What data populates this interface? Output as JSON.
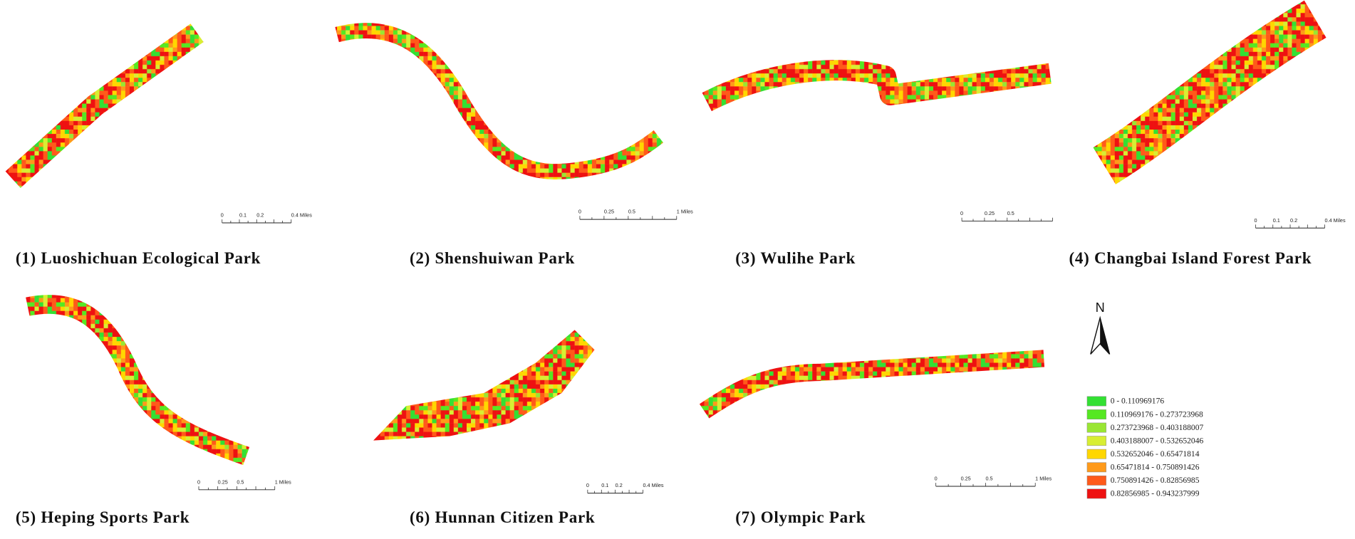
{
  "panels": [
    {
      "caption": "(1) Luoshichuan Ecological Park",
      "scale_bar": [
        "0",
        "0.1",
        "0.2",
        "0.4 Miles"
      ]
    },
    {
      "caption": "(2) Shenshuiwan Park",
      "scale_bar": [
        "0",
        "0.25",
        "0.5",
        "1 Miles"
      ]
    },
    {
      "caption": "(3) Wulihe Park",
      "scale_bar": [
        "0",
        "0.25",
        "0.5"
      ]
    },
    {
      "caption": "(4) Changbai Island Forest Park",
      "scale_bar": [
        "0",
        "0.1",
        "0.2",
        "0.4 Miles"
      ]
    },
    {
      "caption": "(5) Heping Sports Park",
      "scale_bar": [
        "0",
        "0.25",
        "0.5",
        "1 Miles"
      ]
    },
    {
      "caption": "(6) Hunnan Citizen Park",
      "scale_bar": [
        "0",
        "0.1",
        "0.2",
        "0.4 Miles"
      ]
    },
    {
      "caption": "(7) Olympic Park",
      "scale_bar": [
        "0",
        "0.25",
        "0.5",
        "1 Miles"
      ]
    }
  ],
  "north_label": "N",
  "legend": [
    {
      "label": "0 - 0.110969176",
      "color": "#33e033"
    },
    {
      "label": "0.110969176 - 0.273723968",
      "color": "#55e822"
    },
    {
      "label": "0.273723968 - 0.403188007",
      "color": "#99e633"
    },
    {
      "label": "0.403188007 - 0.532652046",
      "color": "#d8ee33"
    },
    {
      "label": "0.532652046 - 0.65471814",
      "color": "#ffd700"
    },
    {
      "label": "0.65471814 - 0.750891426",
      "color": "#ff9a1a"
    },
    {
      "label": "0.750891426 - 0.82856985",
      "color": "#ff5a1a"
    },
    {
      "label": "0.82856985 - 0.943237999",
      "color": "#ee1111"
    }
  ]
}
